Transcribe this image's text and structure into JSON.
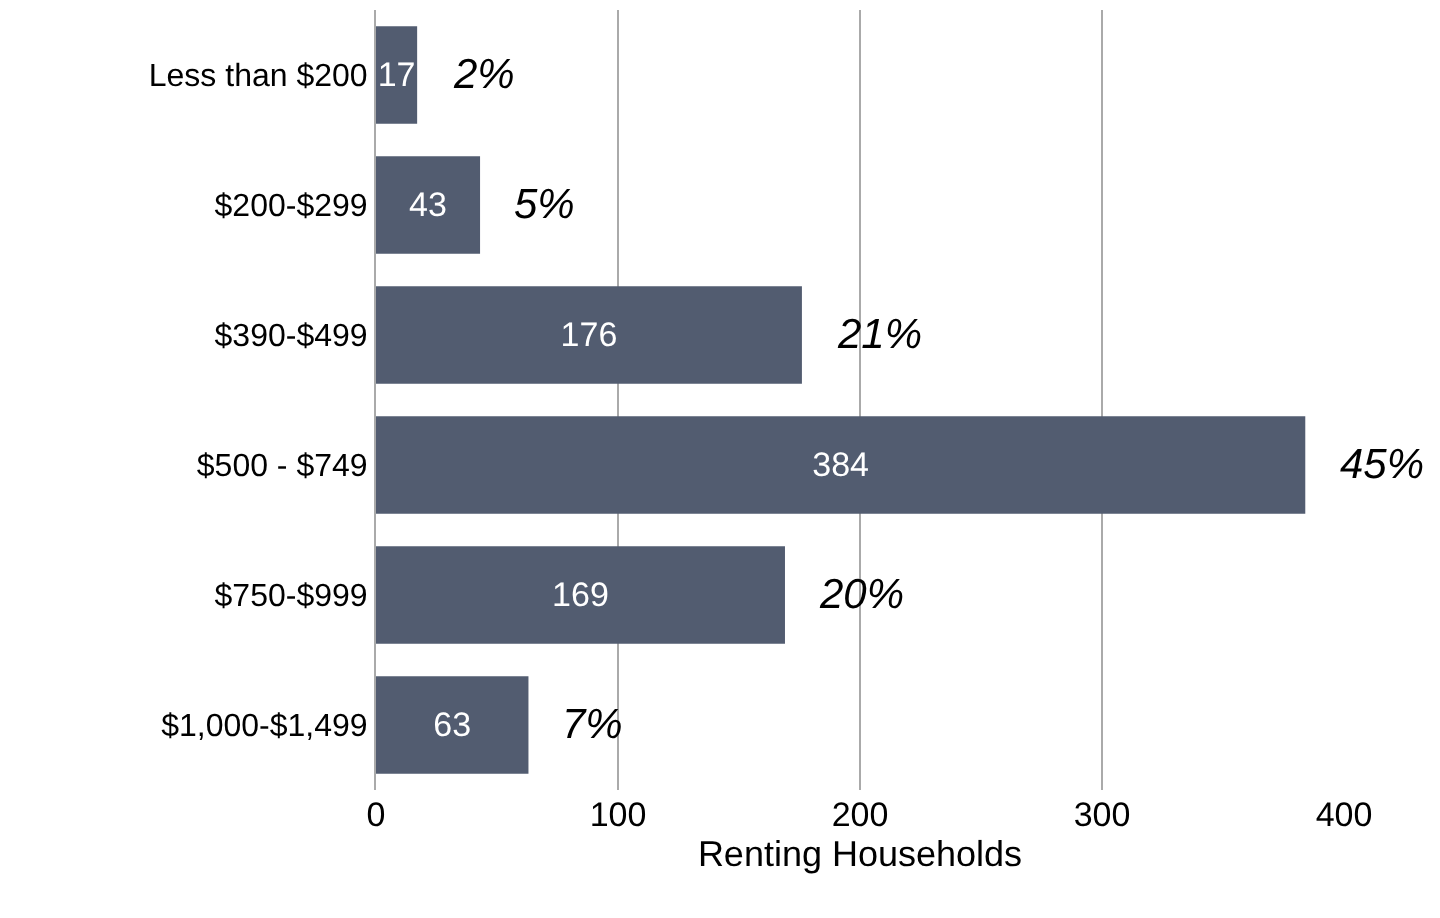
{
  "chart_data": {
    "type": "bar",
    "orientation": "horizontal",
    "xlabel": "Renting Households",
    "categories": [
      "Less than $200",
      "$200-$299",
      "$390-$499",
      "$500 - $749",
      "$750-$999",
      "$1,000-$1,499"
    ],
    "values": [
      17,
      43,
      176,
      384,
      169,
      63
    ],
    "color": "#525c70",
    "data_labels": true,
    "xlim": [
      0,
      400
    ],
    "xticks": [
      0,
      100,
      200,
      300,
      400
    ],
    "grid": "x",
    "annotations": [
      {
        "text": "2%",
        "x": 17,
        "y": "Less than $200"
      },
      {
        "text": "5%",
        "x": 43,
        "y": "$200-$299"
      },
      {
        "text": "21%",
        "x": 176,
        "y": "$390-$499"
      },
      {
        "text": "45%",
        "x": 384,
        "y": "$500 - $749"
      },
      {
        "text": "20%",
        "x": 169,
        "y": "$750-$999"
      },
      {
        "text": "7%",
        "x": 63,
        "y": "$1,000-$1,499"
      }
    ]
  }
}
